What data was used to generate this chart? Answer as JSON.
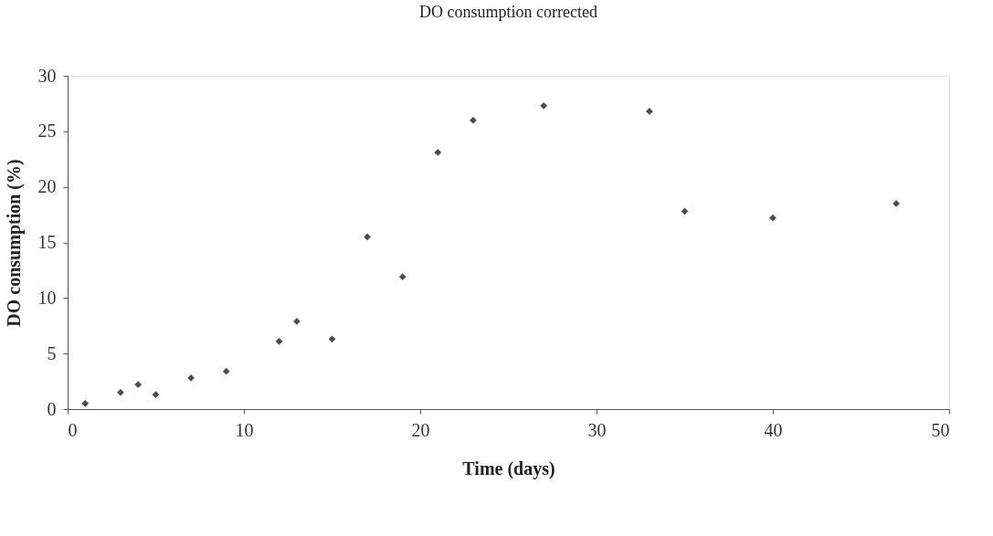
{
  "chart_data": {
    "type": "scatter",
    "title": "DO consumption corrected",
    "xlabel": "Time (days)",
    "ylabel": "DO consumption (%)",
    "x": [
      1,
      3,
      4,
      5,
      7,
      9,
      12,
      13,
      15,
      17,
      19,
      21,
      23,
      27,
      33,
      35,
      40,
      47
    ],
    "series": [
      {
        "color": "#4d4d4d",
        "values": [
          0.5,
          1.5,
          2.2,
          1.3,
          2.8,
          3.4,
          6.1,
          7.9,
          6.3,
          15.5,
          11.9,
          23.1,
          26.0,
          27.3,
          26.8,
          17.8,
          17.2,
          18.5
        ]
      }
    ],
    "xlim": [
      0,
      50
    ],
    "xticks": [
      0,
      10,
      20,
      30,
      40,
      50
    ],
    "ylim": [
      0,
      30
    ],
    "yticks": [
      0,
      5,
      10,
      15,
      20,
      25,
      30
    ],
    "marker": "diamond",
    "grid": false,
    "legend": false
  }
}
